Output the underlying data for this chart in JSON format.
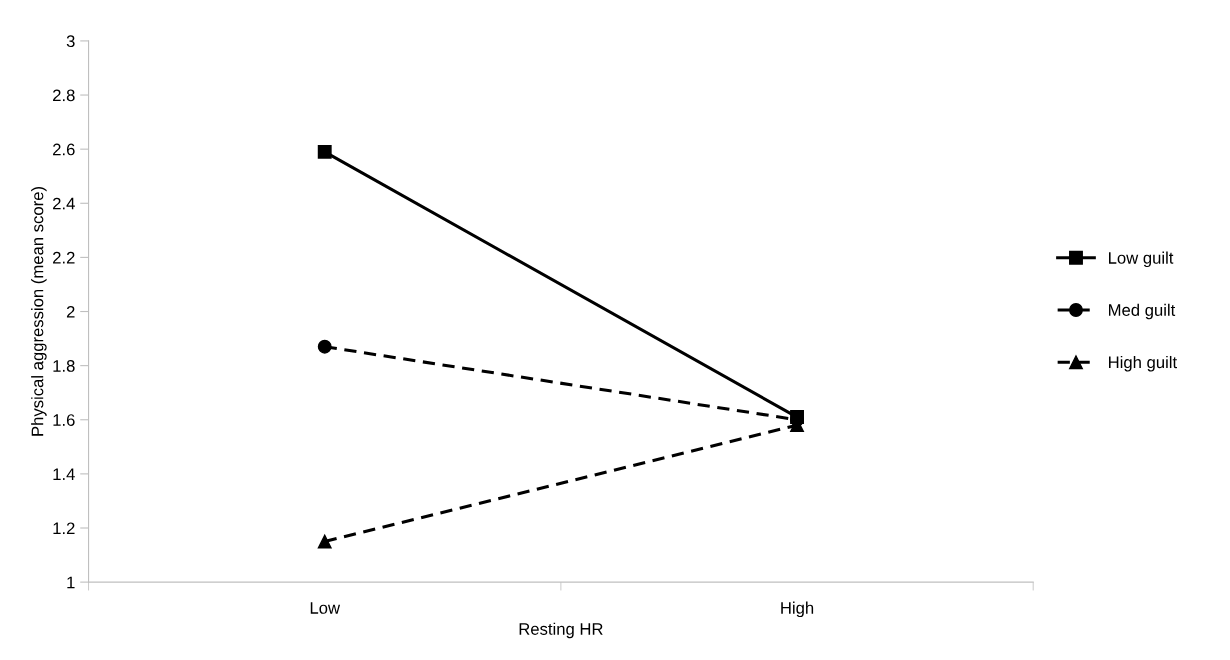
{
  "chart_data": {
    "type": "line",
    "xlabel": "Resting HR",
    "ylabel": "Physical aggression (mean score)",
    "categories": [
      "Low",
      "High"
    ],
    "series": [
      {
        "name": "Low guilt",
        "color": "#000000",
        "values": [
          2.59,
          1.61
        ],
        "marker": "square",
        "line_style": "solid"
      },
      {
        "name": "Med guilt",
        "color": "#000000",
        "values": [
          1.87,
          1.6
        ],
        "marker": "circle",
        "line_style": "dashed"
      },
      {
        "name": "High guilt",
        "color": "#000000",
        "values": [
          1.15,
          1.58
        ],
        "marker": "triangle",
        "line_style": "dashed"
      }
    ],
    "ylim": [
      1,
      3
    ],
    "yticks": [
      1,
      1.2,
      1.4,
      1.6,
      1.8,
      2,
      2.2,
      2.4,
      2.6,
      2.8,
      3
    ],
    "grid": false,
    "legend": "right"
  }
}
